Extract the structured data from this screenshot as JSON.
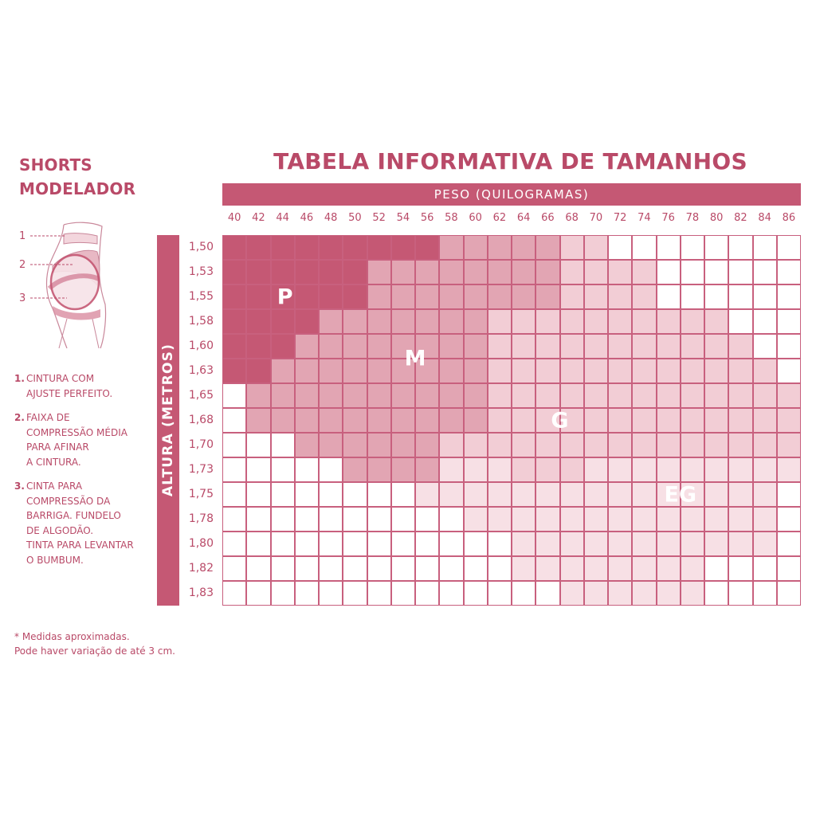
{
  "product": {
    "title_line1": "SHORTS",
    "title_line2": "MODELADOR",
    "diagram_markers": [
      "1",
      "2",
      "3"
    ]
  },
  "features": [
    {
      "num": "1.",
      "text": "CINTURA COM\nAJUSTE PERFEITO."
    },
    {
      "num": "2.",
      "text": "FAIXA DE\nCOMPRESSÃO MÉDIA\nPARA AFINAR\nA CINTURA."
    },
    {
      "num": "3.",
      "text": "CINTA PARA\nCOMPRESSÃO DA\nBARRIGA. FUNDELO\nDE ALGODÃO.\nTINTA PARA LEVANTAR\nO BUMBUM."
    }
  ],
  "footnote": "*  Medidas aproximadas.\n   Pode haver variação de até 3 cm.",
  "table": {
    "title": "TABELA INFORMATIVA DE TAMANHOS",
    "x_axis_label": "PESO (QUILOGRAMAS)",
    "y_axis_label": "ALTURA (METROS)",
    "weights": [
      "40",
      "42",
      "44",
      "46",
      "48",
      "50",
      "52",
      "54",
      "56",
      "58",
      "60",
      "62",
      "64",
      "66",
      "68",
      "70",
      "72",
      "74",
      "76",
      "78",
      "80",
      "82",
      "84",
      "86"
    ],
    "heights": [
      "1,50",
      "1,53",
      "1,55",
      "1,58",
      "1,60",
      "1,63",
      "1,65",
      "1,68",
      "1,70",
      "1,73",
      "1,75",
      "1,78",
      "1,80",
      "1,82",
      "1,83"
    ],
    "size_colors": {
      "P": "#c55874",
      "M": "#e2a5b3",
      "G": "#f2cdd5",
      "EG": "#f7e0e5",
      "none": "#ffffff"
    },
    "size_labels": [
      "P",
      "M",
      "G",
      "EG"
    ],
    "rows": [
      "PPPPPPPPPMMMMMGGWWWWWWWW",
      "PPPPPPMMMMMMMMGGGGWWWWWW",
      "PPPPPPMMMMMMMMGGGGWWWWWW",
      "PPPPMMMMMMMGGGGGGGGGGWWW",
      "PPPMMMMMMMMGGGGGGGGGGGWW",
      "PPMMMMMMMMMGGGGGGGGGGGGW",
      "WMMMMMMMMMMGGGGGGGGGGGGG",
      "WMMMMMMMMMMGGGGGGGGGGGGG",
      "WWWMMMMMMGGGGGGGGGGGGGGG",
      "WWWWWMMMMEEEGGGEEEEEEEEE",
      "WWWWWWWWEEEEEEEEEEEEEEEW",
      "WWWWWWWWWWEEEEEEEEEEEEEW",
      "WWWWWWWWWWWWEEEEEEEEEEEW",
      "WWWWWWWWWWWWEEEEEEEEWWWW",
      "WWWWWWWWWWWWWWEEEEEEWWWW"
    ]
  }
}
